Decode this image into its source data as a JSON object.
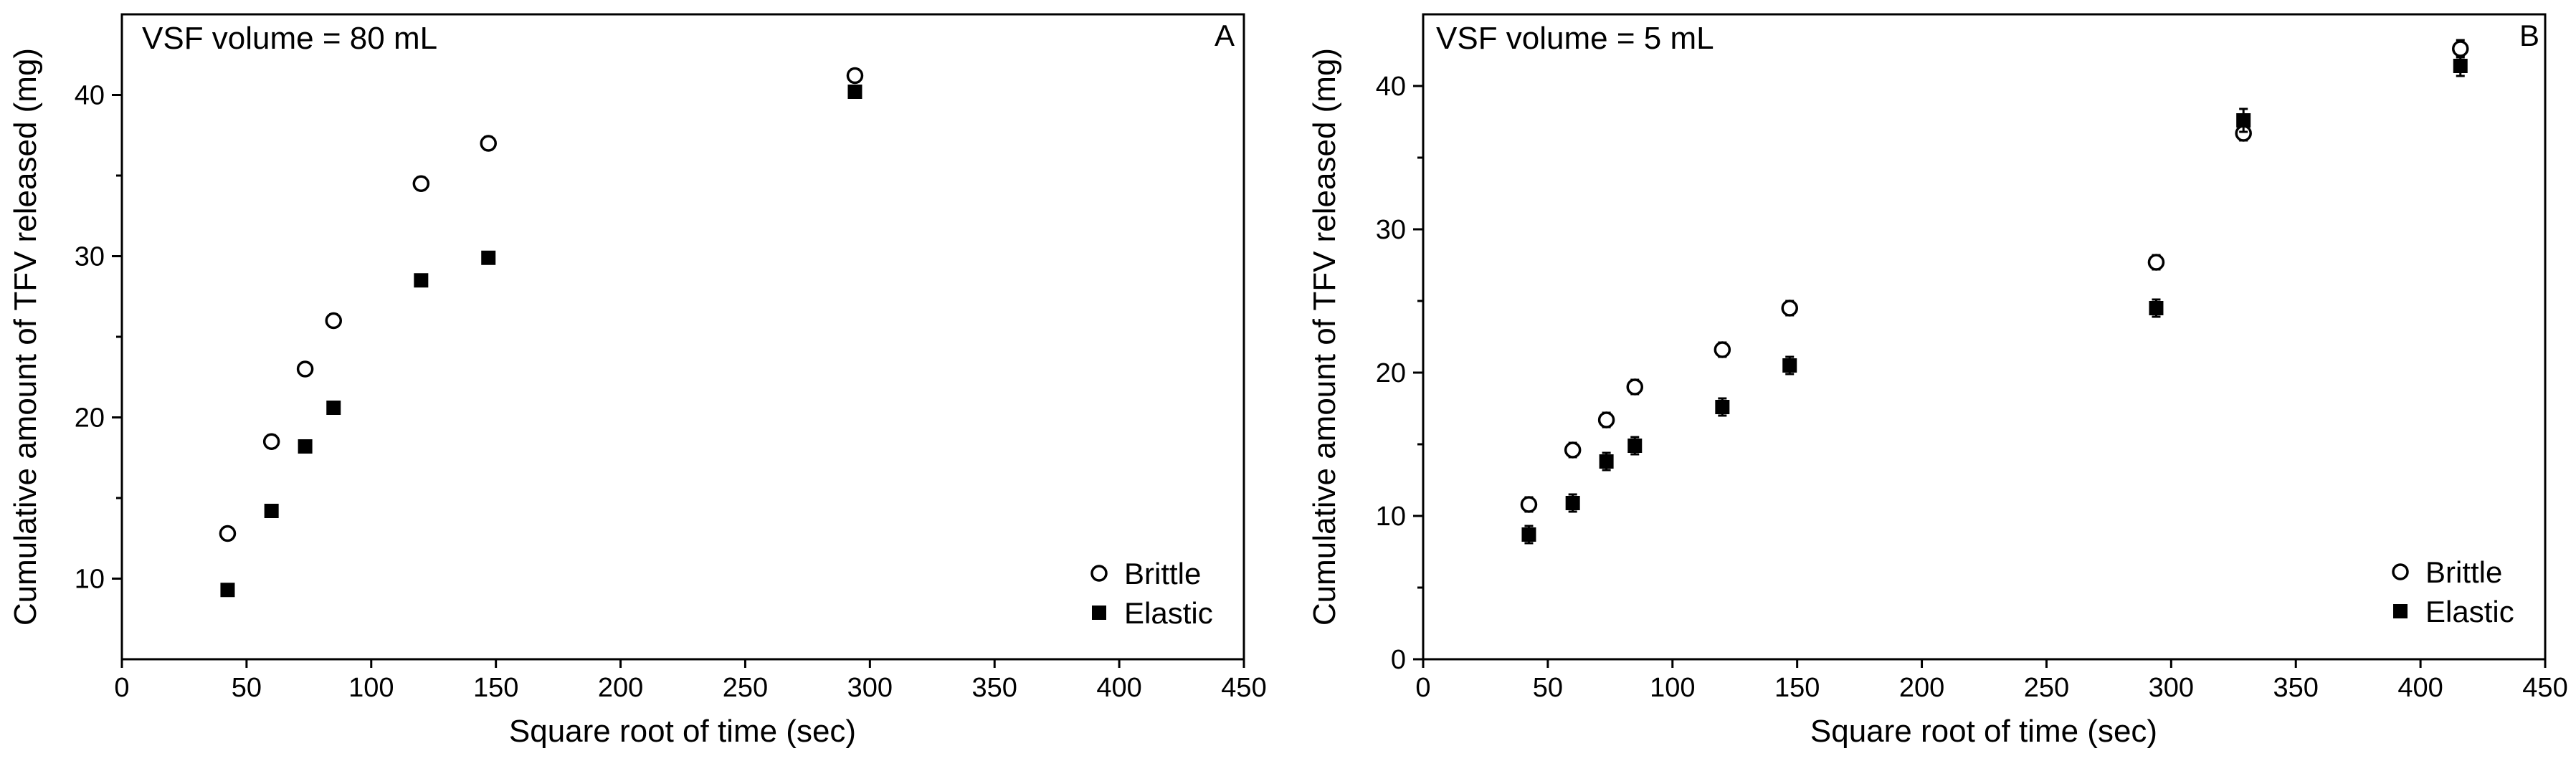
{
  "chart_data": [
    {
      "type": "scatter",
      "panel_letter": "A",
      "annotation": "VSF volume = 80 mL",
      "xlabel": "Square root of time (sec)",
      "ylabel": "Cumulative amount of TFV released (mg)",
      "xlim": [
        0,
        450
      ],
      "ylim": [
        5,
        45
      ],
      "xticks": [
        0,
        50,
        100,
        150,
        200,
        250,
        300,
        350,
        400,
        450
      ],
      "yticks": [
        10,
        20,
        30,
        40
      ],
      "y_minor_ticks": [
        15,
        25,
        35
      ],
      "legend_position": "bottom-right",
      "series": [
        {
          "name": "Brittle",
          "marker": "open-circle",
          "x": [
            42.4,
            60,
            73.5,
            84.9,
            120,
            147,
            294
          ],
          "y": [
            12.8,
            18.5,
            23.0,
            26.0,
            34.5,
            37.0,
            41.2
          ],
          "err": [
            0.4,
            0.4,
            0.4,
            0.4,
            0.4,
            0.4,
            0.4
          ]
        },
        {
          "name": "Elastic",
          "marker": "filled-square",
          "x": [
            42.4,
            60,
            73.5,
            84.9,
            120,
            147,
            294
          ],
          "y": [
            9.3,
            14.2,
            18.2,
            20.6,
            28.5,
            29.9,
            40.2
          ],
          "err": [
            0,
            0,
            0,
            0,
            0,
            0,
            0
          ]
        }
      ]
    },
    {
      "type": "scatter",
      "panel_letter": "B",
      "annotation": "VSF volume = 5 mL",
      "xlabel": "Square root of time (sec)",
      "ylabel": "Cumulative amount of TFV released (mg)",
      "xlim": [
        0,
        450
      ],
      "ylim": [
        0,
        45
      ],
      "xticks": [
        0,
        50,
        100,
        150,
        200,
        250,
        300,
        350,
        400,
        450
      ],
      "yticks": [
        0,
        10,
        20,
        30,
        40
      ],
      "y_minor_ticks": [
        5,
        15,
        25,
        35
      ],
      "legend_position": "bottom-right",
      "series": [
        {
          "name": "Brittle",
          "marker": "open-circle",
          "x": [
            42.4,
            60,
            73.5,
            84.9,
            120,
            147,
            294,
            329,
            416
          ],
          "y": [
            10.8,
            14.6,
            16.7,
            19.0,
            21.6,
            24.5,
            27.7,
            36.7,
            42.6
          ],
          "err": [
            0.5,
            0.5,
            0.5,
            0.5,
            0.5,
            0.5,
            0.5,
            0.5,
            0.6
          ]
        },
        {
          "name": "Elastic",
          "marker": "filled-square",
          "x": [
            42.4,
            60,
            73.5,
            84.9,
            120,
            147,
            294,
            329,
            416
          ],
          "y": [
            8.7,
            10.9,
            13.8,
            14.9,
            17.6,
            20.5,
            24.5,
            37.6,
            41.4
          ],
          "err": [
            0.6,
            0.6,
            0.6,
            0.6,
            0.6,
            0.6,
            0.6,
            0.8,
            0.7
          ]
        }
      ]
    }
  ]
}
